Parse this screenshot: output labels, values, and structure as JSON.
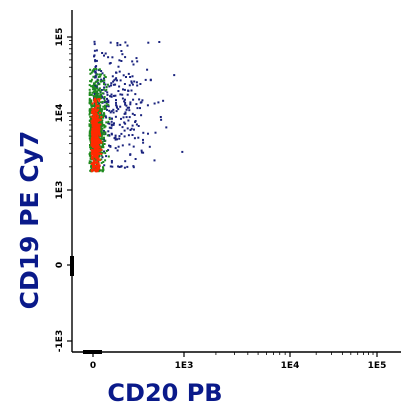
{
  "chart_data": {
    "type": "scatter",
    "title": "",
    "xlabel": "CD20 PB",
    "ylabel": "CD19 PE Cy7",
    "xscale": "logicle",
    "yscale": "logicle",
    "x_tick_labels": [
      "0",
      "1E3",
      "1E4",
      "1E5"
    ],
    "x_tick_values": [
      0,
      1000,
      10000,
      100000
    ],
    "y_tick_labels": [
      "-1E3",
      "0",
      "1E3",
      "1E4",
      "1E5"
    ],
    "y_tick_values": [
      -1000,
      0,
      1000,
      10000,
      100000
    ],
    "grid": false,
    "legend": "none",
    "series": [
      {
        "color": "#1a237e",
        "center": {
          "x": 400,
          "y": 12000
        },
        "x_range": [
          0,
          1200
        ],
        "y_range": [
          2000,
          90000
        ]
      },
      {
        "color": "#1e8a1e",
        "center": {
          "x": 60,
          "y": 7000
        },
        "x_range": [
          -150,
          550
        ],
        "y_range": [
          1800,
          40000
        ]
      },
      {
        "color": "#ff2a00",
        "center": {
          "x": 40,
          "y": 5000
        },
        "x_range": [
          -80,
          250
        ],
        "y_range": [
          1800,
          16000
        ]
      }
    ]
  }
}
